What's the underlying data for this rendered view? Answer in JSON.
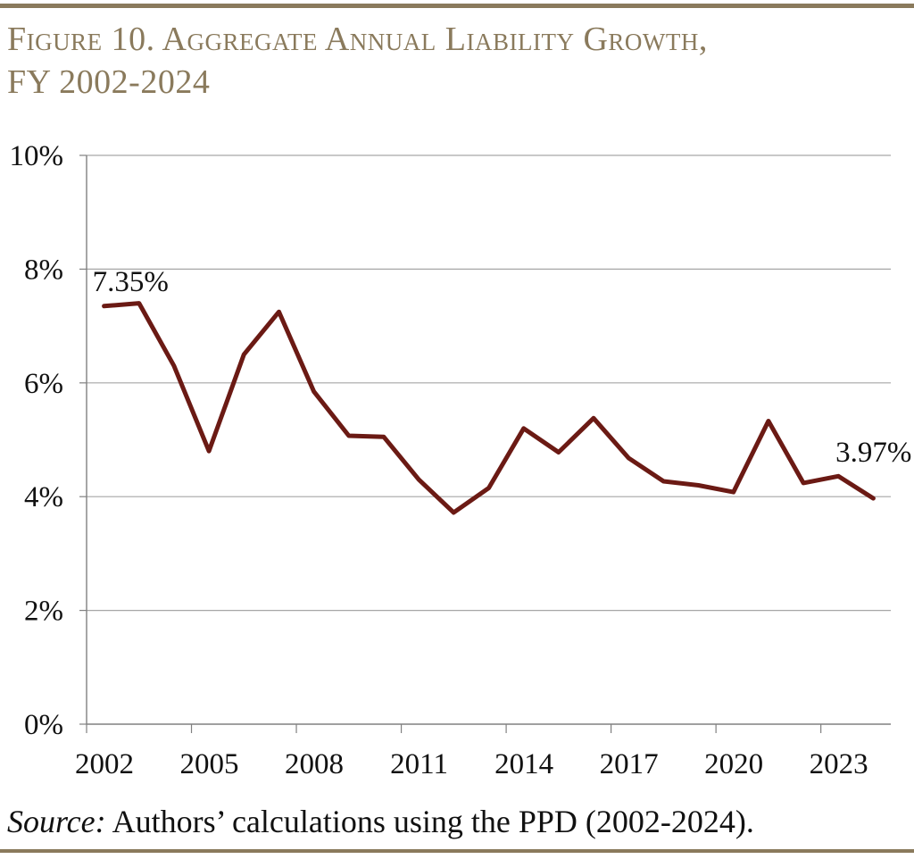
{
  "figure": {
    "title_line1": "Figure 10. Aggregate Annual Liability Growth,",
    "title_line2": "FY 2002-2024",
    "source_label": "Source:",
    "source_text": " Authors’ calculations using the PPD (2002-2024).",
    "accent_color": "#8a7a5c"
  },
  "chart_data": {
    "type": "line",
    "title": "Aggregate Annual Liability Growth, FY 2002-2024",
    "xlabel": "",
    "ylabel": "",
    "ylim": [
      0,
      10
    ],
    "xlim": [
      2002,
      2024
    ],
    "grid": true,
    "y_ticks": [
      0,
      2,
      4,
      6,
      8,
      10
    ],
    "y_tick_labels": [
      "0%",
      "2%",
      "4%",
      "6%",
      "8%",
      "10%"
    ],
    "x_ticks": [
      2002,
      2005,
      2008,
      2011,
      2014,
      2017,
      2020,
      2023
    ],
    "x_tick_labels": [
      "2002",
      "2005",
      "2008",
      "2011",
      "2014",
      "2017",
      "2020",
      "2023"
    ],
    "line_color": "#6b1a14",
    "series": [
      {
        "name": "Aggregate Annual Liability Growth",
        "x": [
          2002,
          2003,
          2004,
          2005,
          2006,
          2007,
          2008,
          2009,
          2010,
          2011,
          2012,
          2013,
          2014,
          2015,
          2016,
          2017,
          2018,
          2019,
          2020,
          2021,
          2022,
          2023,
          2024
        ],
        "values": [
          7.35,
          7.4,
          6.3,
          4.8,
          6.5,
          7.25,
          5.85,
          5.07,
          5.05,
          4.3,
          3.72,
          4.15,
          5.2,
          4.78,
          5.38,
          4.68,
          4.27,
          4.2,
          4.08,
          5.33,
          4.24,
          4.36,
          3.97
        ]
      }
    ],
    "annotations": [
      {
        "x": 2002,
        "y": 7.35,
        "text": "7.35%"
      },
      {
        "x": 2024,
        "y": 3.97,
        "text": "3.97%"
      }
    ]
  }
}
